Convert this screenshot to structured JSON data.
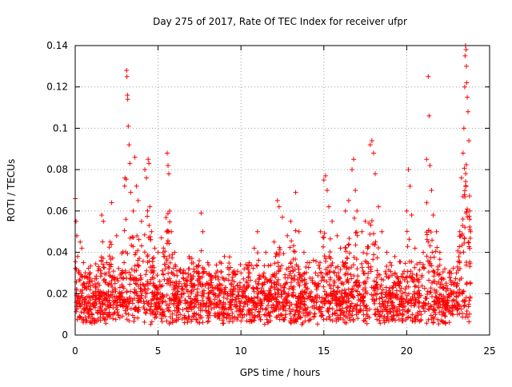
{
  "chart_data": {
    "type": "scatter",
    "title": "Day 275 of 2017, Rate Of TEC Index for receiver ufpr",
    "xlabel": "GPS time / hours",
    "ylabel": "ROTI / TECUs",
    "xlim": [
      0,
      25
    ],
    "ylim": [
      0,
      0.14
    ],
    "xticks": [
      0,
      5,
      10,
      15,
      20,
      25
    ],
    "xtick_labels": [
      "0",
      "5",
      "10",
      "15",
      "20",
      "25"
    ],
    "yticks": [
      0,
      0.02,
      0.04,
      0.06,
      0.08,
      0.1,
      0.12,
      0.14
    ],
    "ytick_labels": [
      "0",
      "0.02",
      "0.04",
      "0.06",
      "0.08",
      "0.1",
      "0.12",
      "0.14"
    ],
    "grid": true,
    "marker": "+",
    "color": "#ff0000",
    "series": [
      {
        "name": "ROTI",
        "points": [
          [
            0.0,
            0.066
          ],
          [
            0.05,
            0.055
          ],
          [
            0.1,
            0.048
          ],
          [
            0.15,
            0.038
          ],
          [
            0.2,
            0.03
          ],
          [
            0.3,
            0.045
          ],
          [
            0.4,
            0.042
          ],
          [
            0.5,
            0.035
          ],
          [
            0.7,
            0.028
          ],
          [
            0.9,
            0.022
          ],
          [
            1.3,
            0.018
          ],
          [
            1.6,
            0.058
          ],
          [
            1.7,
            0.055
          ],
          [
            1.9,
            0.035
          ],
          [
            2.2,
            0.064
          ],
          [
            2.5,
            0.048
          ],
          [
            2.8,
            0.03
          ],
          [
            3.0,
            0.076
          ],
          [
            3.1,
            0.128
          ],
          [
            3.12,
            0.125
          ],
          [
            3.15,
            0.116
          ],
          [
            3.17,
            0.114
          ],
          [
            3.2,
            0.101
          ],
          [
            3.25,
            0.092
          ],
          [
            3.3,
            0.083
          ],
          [
            3.35,
            0.069
          ],
          [
            3.5,
            0.06
          ],
          [
            3.6,
            0.086
          ],
          [
            3.7,
            0.072
          ],
          [
            3.8,
            0.065
          ],
          [
            4.0,
            0.055
          ],
          [
            4.2,
            0.08
          ],
          [
            4.3,
            0.076
          ],
          [
            4.4,
            0.085
          ],
          [
            4.45,
            0.083
          ],
          [
            4.5,
            0.062
          ],
          [
            4.6,
            0.05
          ],
          [
            4.8,
            0.042
          ],
          [
            5.0,
            0.04
          ],
          [
            5.2,
            0.047
          ],
          [
            5.4,
            0.038
          ],
          [
            5.55,
            0.088
          ],
          [
            5.6,
            0.082
          ],
          [
            5.65,
            0.078
          ],
          [
            5.7,
            0.06
          ],
          [
            5.8,
            0.05
          ],
          [
            6.0,
            0.04
          ],
          [
            6.5,
            0.03
          ],
          [
            7.0,
            0.025
          ],
          [
            7.6,
            0.059
          ],
          [
            7.7,
            0.05
          ],
          [
            8.0,
            0.035
          ],
          [
            8.5,
            0.03
          ],
          [
            9.0,
            0.038
          ],
          [
            9.5,
            0.028
          ],
          [
            10.0,
            0.03
          ],
          [
            10.5,
            0.035
          ],
          [
            10.8,
            0.042
          ],
          [
            11.0,
            0.05
          ],
          [
            11.5,
            0.04
          ],
          [
            12.0,
            0.045
          ],
          [
            12.2,
            0.065
          ],
          [
            12.3,
            0.062
          ],
          [
            12.5,
            0.057
          ],
          [
            12.8,
            0.048
          ],
          [
            13.0,
            0.055
          ],
          [
            13.3,
            0.069
          ],
          [
            13.5,
            0.05
          ],
          [
            13.8,
            0.04
          ],
          [
            14.0,
            0.035
          ],
          [
            14.5,
            0.03
          ],
          [
            14.8,
            0.05
          ],
          [
            15.0,
            0.075
          ],
          [
            15.1,
            0.077
          ],
          [
            15.2,
            0.07
          ],
          [
            15.3,
            0.062
          ],
          [
            15.5,
            0.055
          ],
          [
            15.8,
            0.048
          ],
          [
            16.0,
            0.042
          ],
          [
            16.3,
            0.06
          ],
          [
            16.5,
            0.065
          ],
          [
            16.7,
            0.08
          ],
          [
            16.8,
            0.085
          ],
          [
            16.9,
            0.07
          ],
          [
            17.0,
            0.06
          ],
          [
            17.3,
            0.05
          ],
          [
            17.5,
            0.055
          ],
          [
            17.8,
            0.092
          ],
          [
            17.9,
            0.094
          ],
          [
            18.0,
            0.088
          ],
          [
            18.1,
            0.078
          ],
          [
            18.3,
            0.062
          ],
          [
            18.5,
            0.05
          ],
          [
            18.8,
            0.04
          ],
          [
            19.0,
            0.035
          ],
          [
            19.3,
            0.03
          ],
          [
            19.6,
            0.025
          ],
          [
            20.0,
            0.06
          ],
          [
            20.1,
            0.08
          ],
          [
            20.2,
            0.072
          ],
          [
            20.3,
            0.058
          ],
          [
            20.5,
            0.042
          ],
          [
            20.8,
            0.035
          ],
          [
            21.0,
            0.04
          ],
          [
            21.2,
            0.085
          ],
          [
            21.3,
            0.125
          ],
          [
            21.35,
            0.106
          ],
          [
            21.4,
            0.082
          ],
          [
            21.5,
            0.07
          ],
          [
            21.6,
            0.058
          ],
          [
            21.8,
            0.05
          ],
          [
            22.0,
            0.04
          ],
          [
            22.3,
            0.032
          ],
          [
            22.6,
            0.028
          ],
          [
            23.0,
            0.03
          ],
          [
            23.2,
            0.05
          ],
          [
            23.3,
            0.076
          ],
          [
            23.4,
            0.088
          ],
          [
            23.45,
            0.1
          ],
          [
            23.5,
            0.12
          ],
          [
            23.52,
            0.135
          ],
          [
            23.55,
            0.14
          ],
          [
            23.58,
            0.138
          ],
          [
            23.6,
            0.13
          ],
          [
            23.62,
            0.122
          ],
          [
            23.65,
            0.115
          ],
          [
            23.7,
            0.108
          ],
          [
            23.75,
            0.094
          ],
          [
            23.8,
            0.06
          ],
          [
            23.85,
            0.05
          ]
        ]
      }
    ]
  }
}
